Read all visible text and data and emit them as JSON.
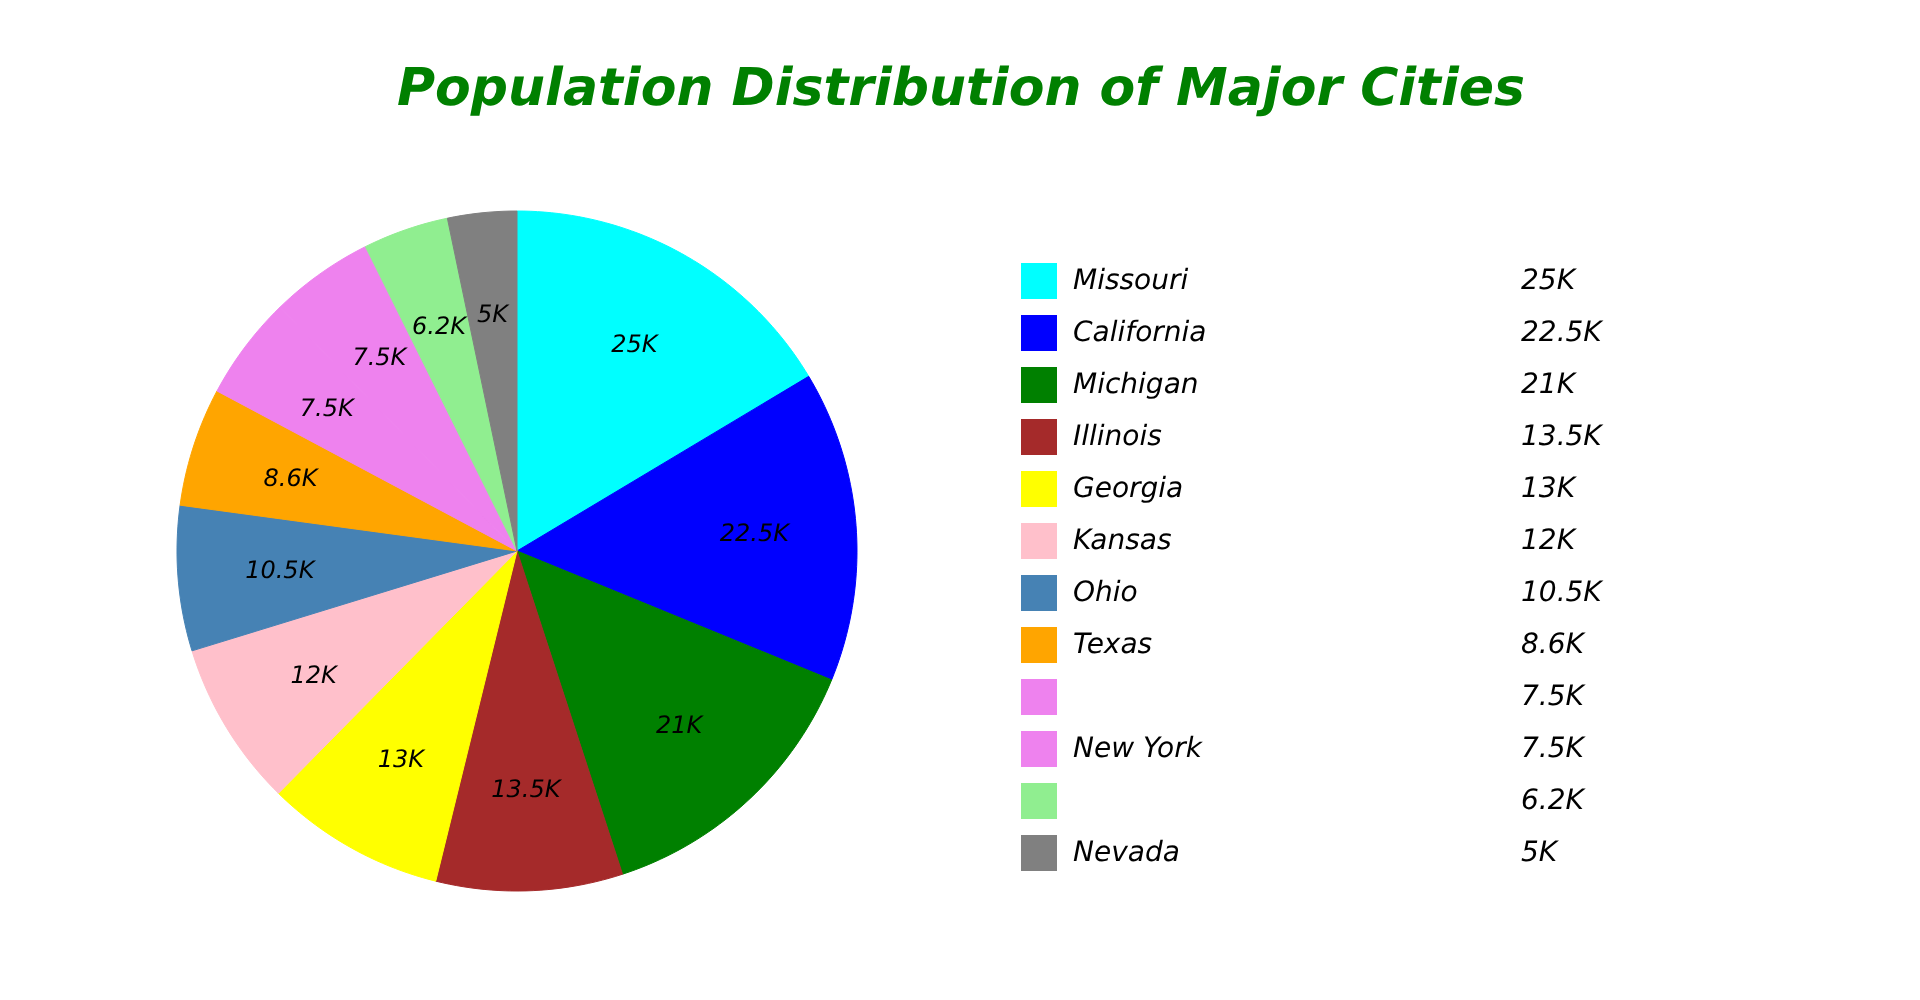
{
  "chart_data": {
    "type": "pie",
    "title": "Population Distribution of Major Cities",
    "categories": [
      "Missouri",
      "California",
      "Michigan",
      "Illinois",
      "Georgia",
      "Kansas",
      "Ohio",
      "Texas",
      null,
      "New York",
      null,
      "Nevada"
    ],
    "values": [
      25000,
      22500,
      21000,
      13500,
      13000,
      12000,
      10500,
      8600,
      7500,
      7500,
      6200,
      5000
    ],
    "value_labels": [
      "25K",
      "22.5K",
      "21K",
      "13.5K",
      "13K",
      "12K",
      "10.5K",
      "8.6K",
      "7.5K",
      "7.5K",
      "6.2K",
      "5K"
    ],
    "colors": [
      "#00ffff",
      "#0000ff",
      "#008000",
      "#a52a2a",
      "#ffff00",
      "#ffc0cb",
      "#4682b4",
      "#ffa500",
      "#ee82ee",
      "#ee82ee",
      "#90ee90",
      "#808080"
    ],
    "legend": "right"
  }
}
